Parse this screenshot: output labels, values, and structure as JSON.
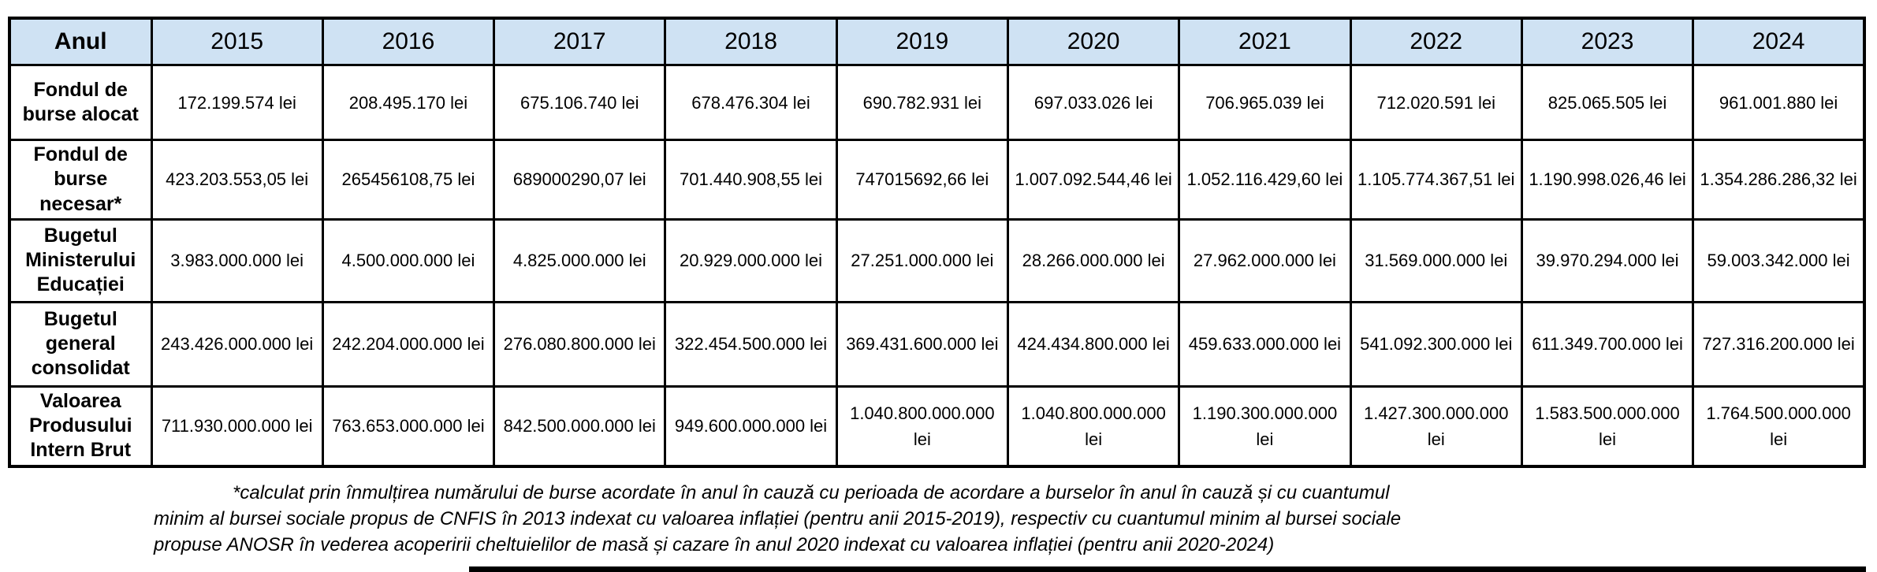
{
  "table": {
    "header": {
      "label": "Anul",
      "years": [
        "2015",
        "2016",
        "2017",
        "2018",
        "2019",
        "2020",
        "2021",
        "2022",
        "2023",
        "2024"
      ]
    },
    "rows": [
      {
        "label": "Fondul de burse alocat",
        "values": [
          "172.199.574 lei",
          "208.495.170 lei",
          "675.106.740 lei",
          "678.476.304 lei",
          "690.782.931 lei",
          "697.033.026 lei",
          "706.965.039 lei",
          "712.020.591 lei",
          "825.065.505 lei",
          "961.001.880 lei"
        ]
      },
      {
        "label": "Fondul de burse necesar*",
        "values": [
          "423.203.553,05 lei",
          "265456108,75 lei",
          "689000290,07 lei",
          "701.440.908,55 lei",
          "747015692,66 lei",
          "1.007.092.544,46 lei",
          "1.052.116.429,60 lei",
          "1.105.774.367,51 lei",
          "1.190.998.026,46 lei",
          "1.354.286.286,32 lei"
        ]
      },
      {
        "label": "Bugetul Ministerului Educației",
        "values": [
          "3.983.000.000 lei",
          "4.500.000.000 lei",
          "4.825.000.000 lei",
          "20.929.000.000 lei",
          "27.251.000.000 lei",
          "28.266.000.000 lei",
          "27.962.000.000 lei",
          "31.569.000.000 lei",
          "39.970.294.000 lei",
          "59.003.342.000 lei"
        ]
      },
      {
        "label": "Bugetul general consolidat",
        "values": [
          "243.426.000.000 lei",
          "242.204.000.000 lei",
          "276.080.800.000 lei",
          "322.454.500.000 lei",
          "369.431.600.000 lei",
          "424.434.800.000 lei",
          "459.633.000.000 lei",
          "541.092.300.000 lei",
          "611.349.700.000 lei",
          "727.316.200.000 lei"
        ]
      },
      {
        "label": "Valoarea Produsului Intern Brut",
        "values": [
          "711.930.000.000 lei",
          "763.653.000.000 lei",
          "842.500.000.000 lei",
          "949.600.000.000 lei",
          "1.040.800.000.000 lei",
          "1.040.800.000.000 lei",
          "1.190.300.000.000 lei",
          "1.427.300.000.000 lei",
          "1.583.500.000.000 lei",
          "1.764.500.000.000 lei"
        ]
      }
    ]
  },
  "footnote": {
    "lines": [
      "*calculat prin înmulțirea numărului de burse acordate în anul în cauză cu perioada de acordare a burselor în anul în cauză și cu cuantumul",
      "minim al bursei sociale propus de CNFIS în 2013 indexat cu valoarea inflației (pentru anii 2015-2019), respectiv cu cuantumul minim al bursei sociale",
      "propuse ANOSR în vederea acoperirii cheltuielilor de masă și cazare în anul 2020 indexat cu valoarea inflației (pentru anii 2020-2024)"
    ]
  },
  "colors": {
    "header_bg": "#cfe2f3",
    "border": "#000000",
    "text": "#000000"
  }
}
